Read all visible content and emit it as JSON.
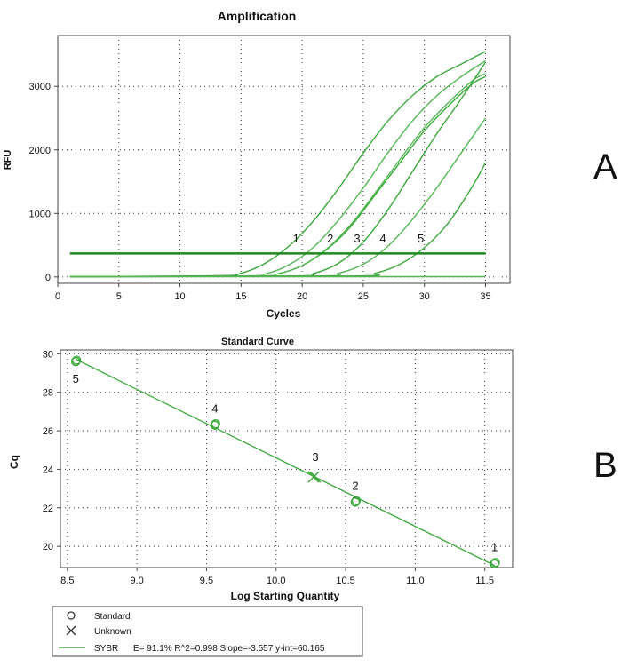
{
  "panels": {
    "a": "A",
    "b": "B"
  },
  "chart_data": [
    {
      "type": "line",
      "title": "Amplification",
      "xlabel": "Cycles",
      "ylabel": "RFU",
      "xlim": [
        0,
        37
      ],
      "ylim": [
        -100,
        3800
      ],
      "xticks": [
        0,
        5,
        10,
        15,
        20,
        25,
        30,
        35
      ],
      "yticks": [
        0,
        1000,
        2000,
        3000
      ],
      "grid": true,
      "color": "#2e9b2e",
      "threshold": 370,
      "series": [
        {
          "values": [
            [
              1,
              5
            ],
            [
              13,
              20
            ],
            [
              15,
              60
            ],
            [
              17,
              220
            ],
            [
              19,
              500
            ],
            [
              21,
              900
            ],
            [
              23,
              1400
            ],
            [
              25,
              1950
            ],
            [
              27,
              2450
            ],
            [
              29,
              2850
            ],
            [
              31,
              3150
            ],
            [
              33,
              3350
            ],
            [
              35,
              3550
            ]
          ]
        },
        {
          "values": [
            [
              1,
              5
            ],
            [
              15,
              15
            ],
            [
              17,
              50
            ],
            [
              19,
              200
            ],
            [
              21,
              480
            ],
            [
              23,
              900
            ],
            [
              25,
              1400
            ],
            [
              27,
              1950
            ],
            [
              29,
              2450
            ],
            [
              31,
              2850
            ],
            [
              33,
              3150
            ],
            [
              35,
              3400
            ]
          ]
        },
        {
          "values": [
            [
              1,
              5
            ],
            [
              16,
              15
            ],
            [
              18,
              50
            ],
            [
              20,
              180
            ],
            [
              22,
              430
            ],
            [
              24,
              800
            ],
            [
              26,
              1300
            ],
            [
              28,
              1800
            ],
            [
              30,
              2300
            ],
            [
              32,
              2700
            ],
            [
              34,
              3050
            ],
            [
              35,
              3150
            ]
          ]
        },
        {
          "values": [
            [
              1,
              5
            ],
            [
              16,
              15
            ],
            [
              18,
              50
            ],
            [
              20,
              180
            ],
            [
              22,
              440
            ],
            [
              24,
              830
            ],
            [
              26,
              1330
            ],
            [
              28,
              1850
            ],
            [
              30,
              2350
            ],
            [
              32,
              2750
            ],
            [
              34,
              3100
            ],
            [
              35,
              3200
            ]
          ]
        },
        {
          "values": [
            [
              1,
              5
            ],
            [
              19,
              15
            ],
            [
              21,
              60
            ],
            [
              23,
              220
            ],
            [
              25,
              550
            ],
            [
              27,
              1050
            ],
            [
              29,
              1650
            ],
            [
              31,
              2250
            ],
            [
              33,
              2800
            ],
            [
              35,
              3380
            ]
          ]
        },
        {
          "values": [
            [
              1,
              5
            ],
            [
              21,
              15
            ],
            [
              23,
              60
            ],
            [
              25,
              200
            ],
            [
              27,
              480
            ],
            [
              29,
              900
            ],
            [
              31,
              1400
            ],
            [
              33,
              1950
            ],
            [
              35,
              2500
            ]
          ]
        },
        {
          "values": [
            [
              1,
              5
            ],
            [
              24,
              15
            ],
            [
              26,
              60
            ],
            [
              28,
              200
            ],
            [
              30,
              460
            ],
            [
              32,
              860
            ],
            [
              34,
              1450
            ],
            [
              35,
              1800
            ]
          ]
        },
        {
          "values": [
            [
              1,
              5
            ],
            [
              35,
              5
            ]
          ]
        }
      ],
      "annotations": [
        {
          "text": "1",
          "x": 19.5,
          "y": 540
        },
        {
          "text": "2",
          "x": 22.3,
          "y": 540
        },
        {
          "text": "3",
          "x": 24.5,
          "y": 540
        },
        {
          "text": "4",
          "x": 26.6,
          "y": 540
        },
        {
          "text": "5",
          "x": 29.7,
          "y": 540
        }
      ]
    },
    {
      "type": "scatter",
      "title": "Standard Curve",
      "xlabel": "Log Starting Quantity",
      "ylabel": "Cq",
      "xlim": [
        8.45,
        11.7
      ],
      "ylim": [
        18.9,
        30.2
      ],
      "xticks": [
        8.5,
        9.0,
        9.5,
        10.0,
        10.5,
        11.0,
        11.5
      ],
      "xtick_labels": [
        "8.5",
        "9.0",
        "9.5",
        "10.0",
        "10.5",
        "11.0",
        "11.5"
      ],
      "yticks": [
        20,
        22,
        24,
        26,
        28,
        30
      ],
      "grid": true,
      "color": "#2e9b2e",
      "line": {
        "slope": -3.557,
        "intercept": 60.165,
        "x_range": [
          8.56,
          11.57
        ]
      },
      "standards": [
        {
          "label": "5",
          "x": 8.56,
          "y": 29.6
        },
        {
          "label": "4",
          "x": 9.56,
          "y": 26.3
        },
        {
          "label": "2",
          "x": 10.57,
          "y": 22.3
        },
        {
          "label": "1",
          "x": 11.57,
          "y": 19.1
        }
      ],
      "unknowns": [
        {
          "label": "3",
          "x": 10.27,
          "y": 23.6
        }
      ],
      "legend": {
        "placement": "bottom",
        "standard": "Standard",
        "unknown": "Unknown",
        "series": "SYBR",
        "stats": "E= 91.1% R^2=0.998 Slope=-3.557 y-int=60.165"
      }
    }
  ]
}
